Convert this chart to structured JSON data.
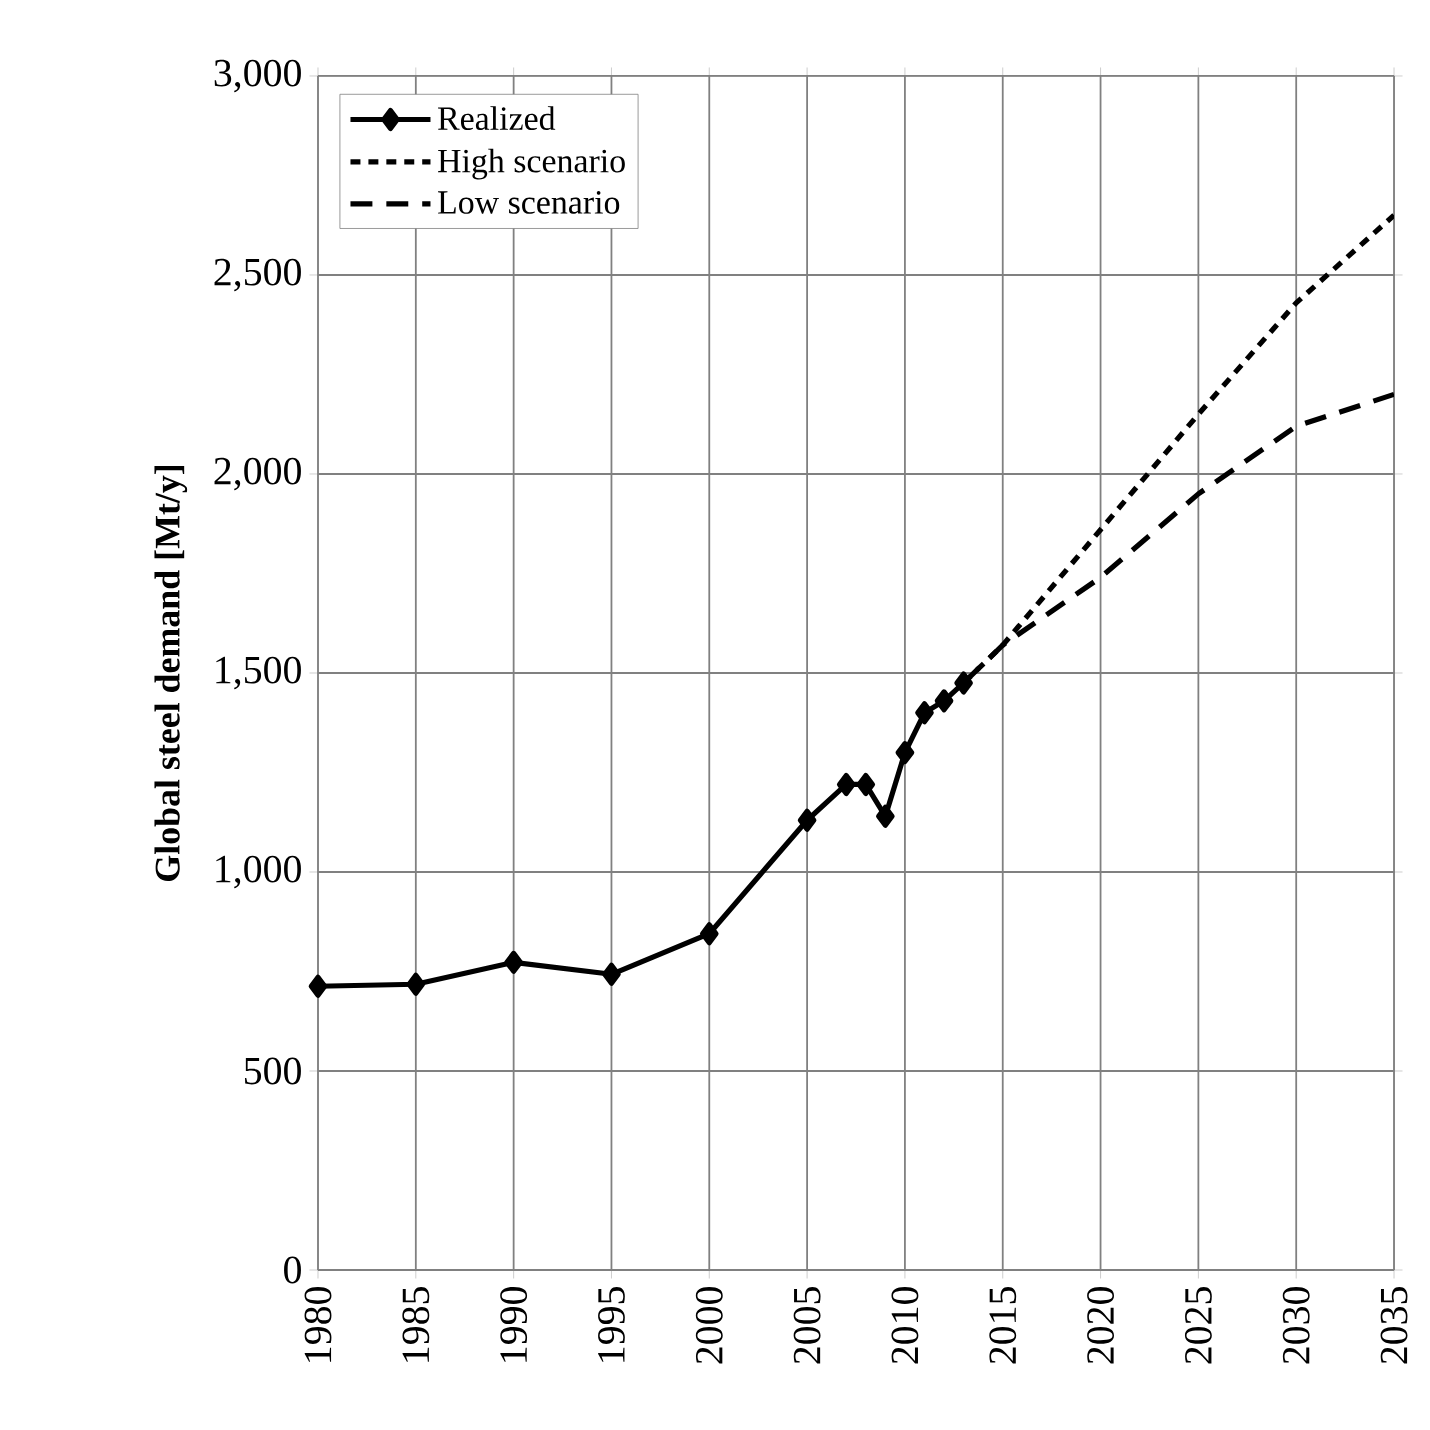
{
  "chart_data": {
    "type": "line",
    "ylabel": "Global steel demand [Mt/y]",
    "xlim": [
      1980,
      2035
    ],
    "xticks": [
      1980,
      1985,
      1990,
      1995,
      2000,
      2005,
      2010,
      2015,
      2020,
      2025,
      2030,
      2035
    ],
    "ylim": [
      0,
      3000
    ],
    "yticks": [
      0,
      500,
      {
        "value": 1000,
        "label": "1,000"
      },
      {
        "value": 1500,
        "label": "1,500"
      },
      {
        "value": 2000,
        "label": "2,000"
      },
      {
        "value": 2500,
        "label": "2,500"
      },
      {
        "value": 3000,
        "label": "3,000"
      }
    ],
    "grid": true,
    "legend": "top left",
    "series": [
      {
        "name": "Realized",
        "color": "#000000",
        "marker": "diamond",
        "line_style": "solid",
        "x": [
          1980,
          1985,
          1990,
          1995,
          2000,
          2005,
          2007,
          2008,
          2009,
          2010,
          2011,
          2012,
          2013
        ],
        "values": [
          713,
          718,
          773,
          743,
          845,
          1130,
          1220,
          1220,
          1140,
          1300,
          1400,
          1430,
          1475
        ]
      },
      {
        "name": "High scenario",
        "color": "#000000",
        "marker": "none",
        "line_style": "dashed",
        "x": [
          2013,
          2015,
          2020,
          2025,
          2030,
          2035
        ],
        "values": [
          1475,
          1570,
          1860,
          2150,
          2430,
          2650
        ]
      },
      {
        "name": "Low scenario",
        "color": "#000000",
        "marker": "none",
        "line_style": "dashed",
        "x": [
          2013,
          2015,
          2020,
          2025,
          2030,
          2035
        ],
        "values": [
          1475,
          1570,
          1740,
          1950,
          2120,
          2200
        ]
      }
    ]
  }
}
